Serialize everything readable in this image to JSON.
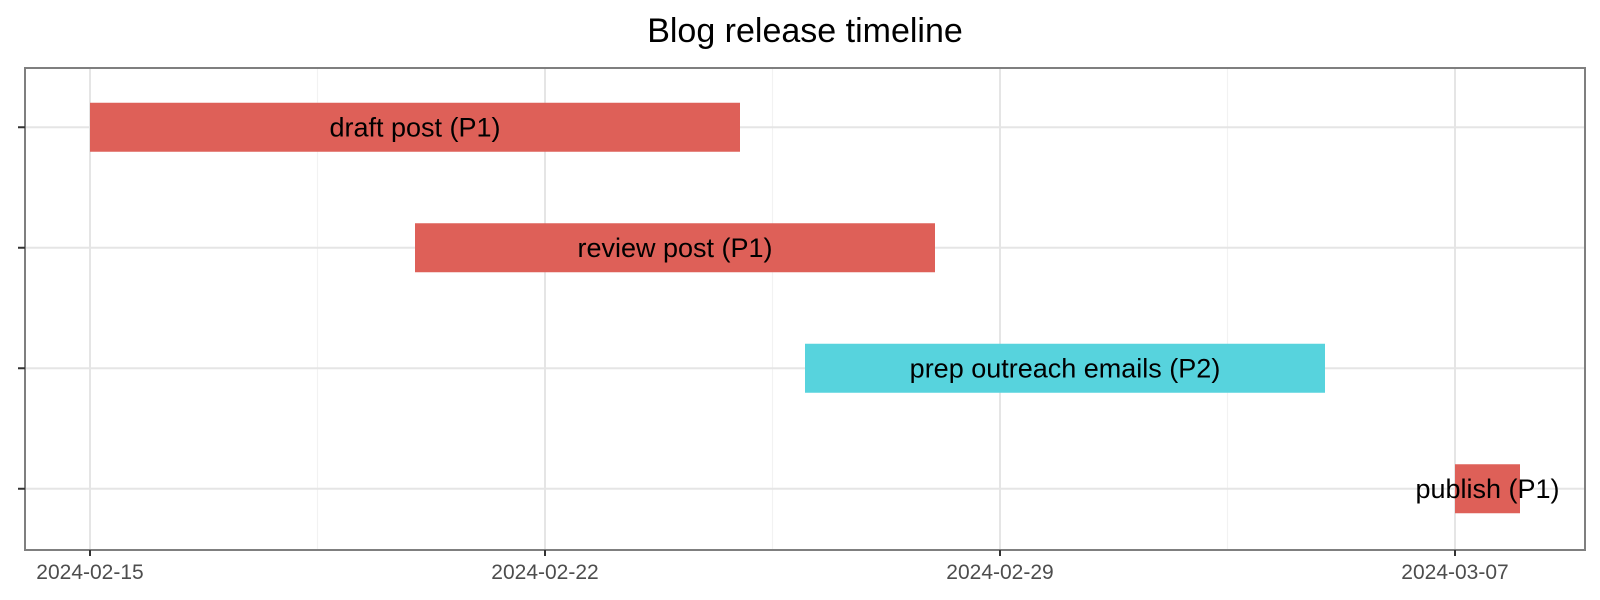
{
  "chart_data": {
    "type": "gantt",
    "title": "Blog release timeline",
    "xlabel": "",
    "ylabel": "",
    "x_range": [
      "2024-02-14",
      "2024-03-09"
    ],
    "x_ticks": [
      "2024-02-15",
      "2024-02-22",
      "2024-02-29",
      "2024-03-07"
    ],
    "grid": true,
    "tasks": [
      {
        "label": "draft post (P1)",
        "start": "2024-02-15",
        "end": "2024-02-25",
        "priority": "P1"
      },
      {
        "label": "review post (P1)",
        "start": "2024-02-20",
        "end": "2024-02-28",
        "priority": "P1"
      },
      {
        "label": "prep outreach emails (P2)",
        "start": "2024-02-26",
        "end": "2024-03-05",
        "priority": "P2"
      },
      {
        "label": "publish (P1)",
        "start": "2024-03-07",
        "end": "2024-03-08",
        "priority": "P1"
      }
    ],
    "colors": {
      "P1": "#de6058",
      "P2": "#57d3dd"
    }
  }
}
